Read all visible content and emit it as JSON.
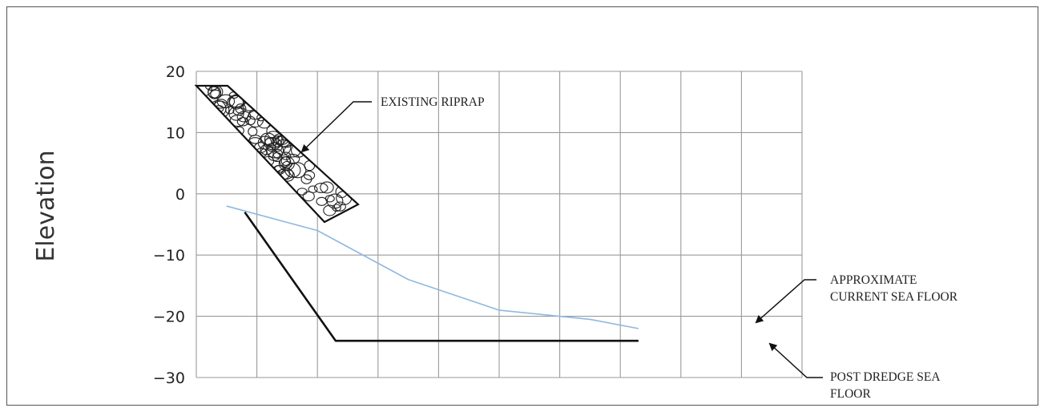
{
  "chart_data": {
    "type": "line",
    "title": "",
    "xlabel": "",
    "ylabel": "Elevation",
    "ylim": [
      -30,
      20
    ],
    "y_ticks": [
      "20",
      "10",
      "0",
      "−10",
      "−20",
      "−30"
    ],
    "x_grid_divisions": 11,
    "grid": true,
    "series": [
      {
        "name": "APPROXIMATE CURRENT SEA FLOOR",
        "color": "#8fb8e0",
        "points": [
          [
            0.5,
            -2
          ],
          [
            2,
            -6
          ],
          [
            3.5,
            -14
          ],
          [
            5,
            -19
          ],
          [
            6.5,
            -20.5
          ],
          [
            7.3,
            -22
          ]
        ]
      },
      {
        "name": "POST DREDGE SEA FLOOR",
        "color": "#111111",
        "points": [
          [
            0.8,
            -3
          ],
          [
            2.3,
            -24
          ],
          [
            7.3,
            -24
          ]
        ]
      }
    ],
    "riprap_label": "EXISTING RIPRAP",
    "annotations": [
      {
        "id": "riprap",
        "lines": [
          "EXISTING RIPRAP"
        ]
      },
      {
        "id": "current",
        "lines": [
          "APPROXIMATE",
          "CURRENT SEA FLOOR"
        ]
      },
      {
        "id": "dredge",
        "lines": [
          "POST DREDGE SEA",
          "FLOOR"
        ]
      }
    ]
  }
}
